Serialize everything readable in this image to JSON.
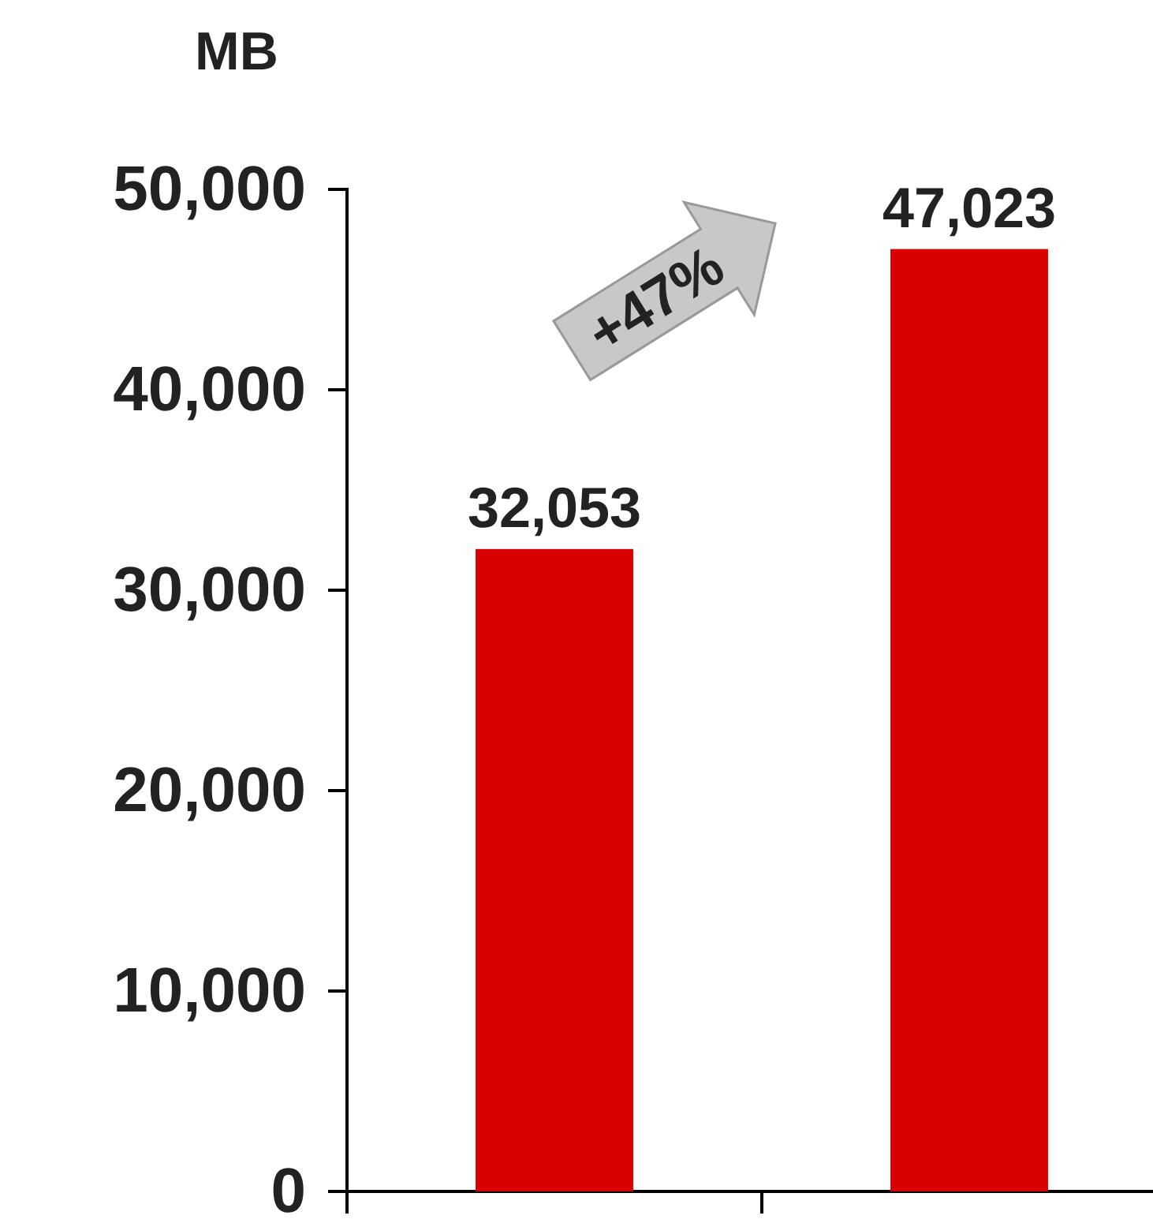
{
  "chart_data": {
    "type": "bar",
    "ylabel": "MB",
    "categories": [
      null,
      null
    ],
    "values": [
      32053,
      47023
    ],
    "color": "#d90000",
    "ylim": [
      0,
      50000
    ],
    "yticks": [
      {
        "value": 0,
        "label": "0"
      },
      {
        "value": 10000,
        "label": "10,000"
      },
      {
        "value": 20000,
        "label": "20,000"
      },
      {
        "value": 30000,
        "label": "30,000"
      },
      {
        "value": 40000,
        "label": "40,000"
      },
      {
        "value": 50000,
        "label": "50,000"
      }
    ],
    "value_labels": [
      "32,053",
      "47,023"
    ],
    "annotations": [
      "+47%"
    ],
    "tick_labels": "y",
    "grid": false
  }
}
